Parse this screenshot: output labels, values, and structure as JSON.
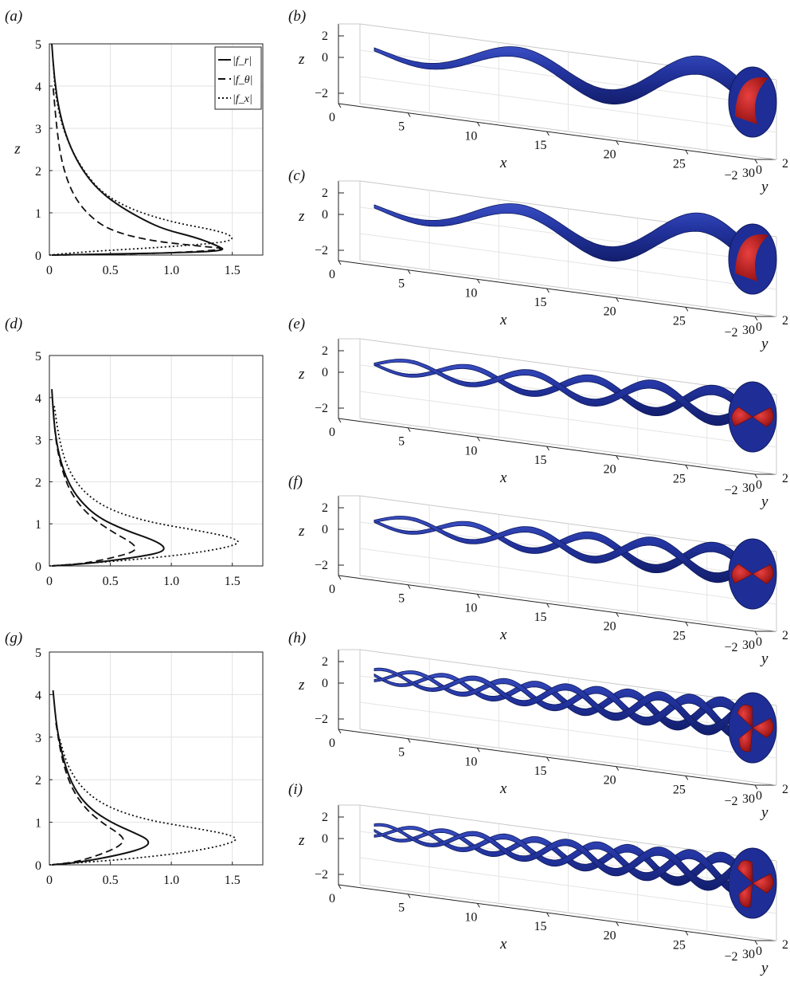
{
  "figure": {
    "panel_labels": [
      "(a)",
      "(b)",
      "(c)",
      "(d)",
      "(e)",
      "(f)",
      "(g)",
      "(h)",
      "(i)"
    ]
  },
  "chart_data": [
    {
      "panel": "(a)",
      "type": "line",
      "xlabel": "",
      "ylabel": "z",
      "xlim": [
        0,
        1.75
      ],
      "ylim": [
        0,
        5
      ],
      "xticks": [
        "0",
        "0.5",
        "1.0",
        "1.5"
      ],
      "yticks": [
        "0",
        "1",
        "2",
        "3",
        "4",
        "5"
      ],
      "grid": true,
      "legend": {
        "placement": "top-right",
        "entries": [
          "|f_r|",
          "|f_θ|",
          "|f_x|"
        ]
      },
      "series": [
        {
          "name": "|f_r|",
          "style": "solid",
          "x": [
            0.02,
            0.4,
            1.0,
            1.45,
            1.38,
            1.2,
            0.95,
            0.78,
            0.55,
            0.38,
            0.25,
            0.15,
            0.08,
            0.04,
            0.02
          ],
          "z": [
            0.0,
            0.02,
            0.05,
            0.1,
            0.22,
            0.42,
            0.6,
            0.82,
            1.2,
            1.6,
            2.1,
            2.7,
            3.4,
            4.2,
            5.0
          ]
        },
        {
          "name": "|f_θ|",
          "style": "dashed",
          "x": [
            0.02,
            0.5,
            1.0,
            1.5,
            1.2,
            0.8,
            0.48,
            0.3,
            0.18,
            0.1,
            0.06,
            0.03
          ],
          "z": [
            0.0,
            0.02,
            0.05,
            0.14,
            0.22,
            0.35,
            0.6,
            1.0,
            1.5,
            2.2,
            3.0,
            4.0
          ]
        },
        {
          "name": "|f_x|",
          "style": "dotted",
          "x": [
            0.0,
            0.3,
            0.9,
            1.45,
            1.52,
            1.38,
            1.0,
            0.65,
            0.42,
            0.28,
            0.18,
            0.1,
            0.05,
            0.03
          ],
          "z": [
            0.0,
            0.08,
            0.18,
            0.3,
            0.42,
            0.58,
            0.78,
            1.1,
            1.5,
            2.0,
            2.5,
            3.1,
            3.8,
            4.6
          ]
        }
      ]
    },
    {
      "panel": "(d)",
      "type": "line",
      "xlabel": "",
      "ylabel": "",
      "xlim": [
        0,
        1.75
      ],
      "ylim": [
        0,
        5
      ],
      "xticks": [
        "0",
        "0.5",
        "1.0",
        "1.5"
      ],
      "yticks": [
        "0",
        "1",
        "2",
        "3",
        "4",
        "5"
      ],
      "grid": true,
      "series": [
        {
          "name": "|f_r|",
          "style": "solid",
          "x": [
            0.02,
            0.3,
            0.7,
            0.92,
            0.95,
            0.85,
            0.62,
            0.4,
            0.25,
            0.15,
            0.08,
            0.04,
            0.02
          ],
          "z": [
            0.0,
            0.05,
            0.2,
            0.32,
            0.45,
            0.62,
            0.85,
            1.15,
            1.55,
            2.0,
            2.6,
            3.3,
            4.2
          ]
        },
        {
          "name": "|f_θ|",
          "style": "dashed",
          "x": [
            0.02,
            0.3,
            0.6,
            0.72,
            0.68,
            0.52,
            0.32,
            0.18,
            0.1,
            0.05,
            0.03
          ],
          "z": [
            0.0,
            0.06,
            0.25,
            0.38,
            0.55,
            0.8,
            1.2,
            1.7,
            2.3,
            3.0,
            3.8
          ]
        },
        {
          "name": "|f_x|",
          "style": "dotted",
          "x": [
            0.0,
            0.25,
            0.7,
            1.2,
            1.58,
            1.5,
            1.2,
            0.8,
            0.48,
            0.28,
            0.15,
            0.08,
            0.04
          ],
          "z": [
            0.0,
            0.05,
            0.15,
            0.3,
            0.52,
            0.68,
            0.85,
            1.05,
            1.35,
            1.75,
            2.3,
            3.0,
            3.8
          ]
        }
      ]
    },
    {
      "panel": "(g)",
      "type": "line",
      "xlabel": "",
      "ylabel": "",
      "xlim": [
        0,
        1.75
      ],
      "ylim": [
        0,
        5
      ],
      "xticks": [
        "0",
        "0.5",
        "1.0",
        "1.5"
      ],
      "yticks": [
        "0",
        "1",
        "2",
        "3",
        "4",
        "5"
      ],
      "grid": true,
      "series": [
        {
          "name": "|f_r|",
          "style": "solid",
          "x": [
            0.02,
            0.25,
            0.6,
            0.8,
            0.82,
            0.7,
            0.5,
            0.32,
            0.2,
            0.12,
            0.06,
            0.03
          ],
          "z": [
            0.0,
            0.06,
            0.25,
            0.42,
            0.58,
            0.75,
            1.0,
            1.35,
            1.8,
            2.4,
            3.2,
            4.1
          ]
        },
        {
          "name": "|f_θ|",
          "style": "dashed",
          "x": [
            0.02,
            0.25,
            0.52,
            0.62,
            0.58,
            0.45,
            0.3,
            0.18,
            0.1,
            0.05
          ],
          "z": [
            0.0,
            0.08,
            0.35,
            0.55,
            0.72,
            0.95,
            1.3,
            1.8,
            2.5,
            3.4
          ]
        },
        {
          "name": "|f_x|",
          "style": "dotted",
          "x": [
            0.0,
            0.25,
            0.7,
            1.2,
            1.55,
            1.5,
            1.2,
            0.8,
            0.48,
            0.28,
            0.15,
            0.08
          ],
          "z": [
            0.0,
            0.05,
            0.15,
            0.32,
            0.55,
            0.7,
            0.86,
            1.05,
            1.35,
            1.75,
            2.3,
            3.0
          ]
        }
      ]
    }
  ],
  "surface_panels": [
    {
      "panel": "(b)",
      "lobes": 1
    },
    {
      "panel": "(c)",
      "lobes": 1
    },
    {
      "panel": "(e)",
      "lobes": 2
    },
    {
      "panel": "(f)",
      "lobes": 2
    },
    {
      "panel": "(h)",
      "lobes": 3
    },
    {
      "panel": "(i)",
      "lobes": 3
    }
  ],
  "surface_axes": {
    "xlabel": "x",
    "ylabel": "y",
    "zlabel": "z",
    "xticks": [
      "0",
      "5",
      "10",
      "15",
      "20",
      "25",
      "30"
    ],
    "yticks": [
      "−2",
      "0",
      "2"
    ],
    "zticks": [
      "2",
      "0",
      "−2"
    ],
    "colors": {
      "surface": "#1a2a8c",
      "surface_light": "#3346b8",
      "inner": "#c41a1a"
    }
  }
}
